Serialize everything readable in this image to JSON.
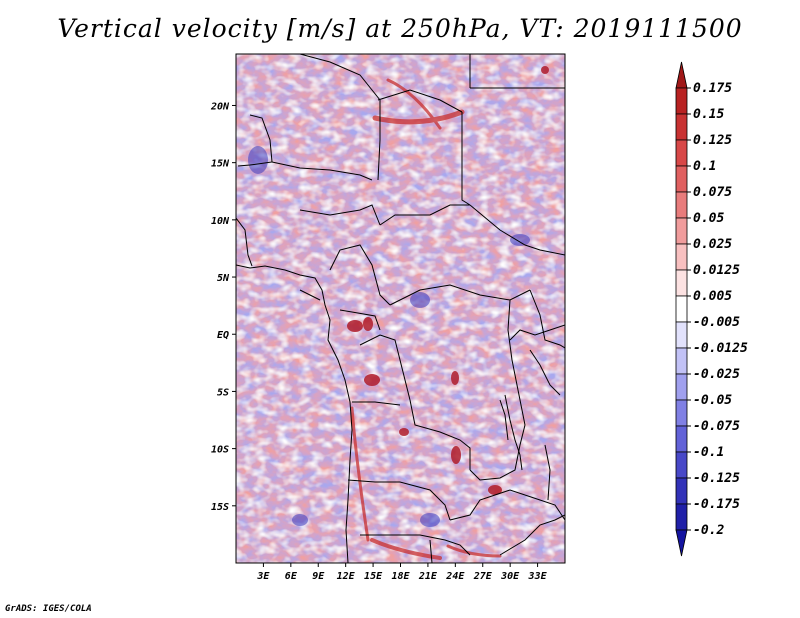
{
  "title": "Vertical velocity [m/s] at 250hPa, VT: 2019111500",
  "credit": "GrADS: IGES/COLA",
  "map": {
    "lon_range": [
      0,
      36
    ],
    "lat_range": [
      -20,
      24.5
    ],
    "x_ticks": [
      {
        "value": 3,
        "label": "3E"
      },
      {
        "value": 6,
        "label": "6E"
      },
      {
        "value": 9,
        "label": "9E"
      },
      {
        "value": 12,
        "label": "12E"
      },
      {
        "value": 15,
        "label": "15E"
      },
      {
        "value": 18,
        "label": "18E"
      },
      {
        "value": 21,
        "label": "21E"
      },
      {
        "value": 24,
        "label": "24E"
      },
      {
        "value": 27,
        "label": "27E"
      },
      {
        "value": 30,
        "label": "30E"
      },
      {
        "value": 33,
        "label": "33E"
      }
    ],
    "y_ticks": [
      {
        "value": 20,
        "label": "20N"
      },
      {
        "value": 15,
        "label": "15N"
      },
      {
        "value": 10,
        "label": "10N"
      },
      {
        "value": 5,
        "label": "5N"
      },
      {
        "value": 0,
        "label": "EQ"
      },
      {
        "value": -5,
        "label": "5S"
      },
      {
        "value": -10,
        "label": "10S"
      },
      {
        "value": -15,
        "label": "15S"
      }
    ],
    "border_color": "#000000"
  },
  "colorbar": {
    "labels": [
      "0.175",
      "0.15",
      "0.125",
      "0.1",
      "0.075",
      "0.05",
      "0.025",
      "0.0125",
      "0.005",
      "-0.005",
      "-0.0125",
      "-0.025",
      "-0.05",
      "-0.075",
      "-0.1",
      "-0.125",
      "-0.175",
      "-0.2"
    ],
    "colors": [
      "#a01818",
      "#b82222",
      "#c83232",
      "#d84848",
      "#e06060",
      "#e87c7c",
      "#f09c9c",
      "#f8c0c0",
      "#fce2e2",
      "#ffffff",
      "#e2e2fc",
      "#c2c2f6",
      "#a0a0ee",
      "#8080e4",
      "#6262d8",
      "#4848c8",
      "#3232b8",
      "#2020a8",
      "#1414a0"
    ]
  }
}
